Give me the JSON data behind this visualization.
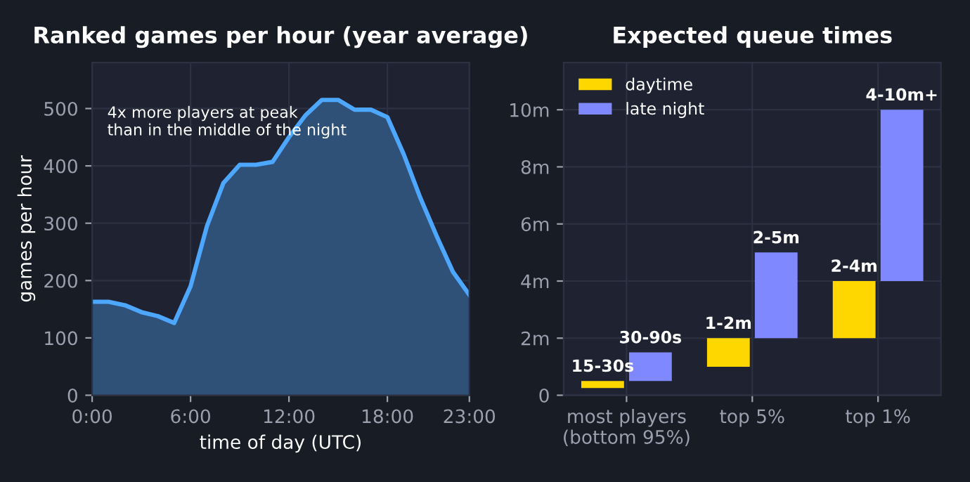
{
  "chart_data": [
    {
      "type": "area",
      "title": "Ranked games per hour (year average)",
      "xlabel": "time of day (UTC)",
      "ylabel": "games per hour",
      "x": [
        0,
        1,
        2,
        3,
        4,
        5,
        6,
        7,
        8,
        9,
        10,
        11,
        12,
        13,
        14,
        15,
        16,
        17,
        18,
        19,
        20,
        21,
        22,
        23
      ],
      "series": [
        {
          "color": "#4da6ff",
          "values": [
            163,
            163,
            157,
            145,
            138,
            126,
            190,
            295,
            370,
            402,
            402,
            407,
            450,
            488,
            515,
            515,
            498,
            498,
            485,
            420,
            345,
            278,
            215,
            175
          ]
        }
      ],
      "xlim": [
        0,
        23
      ],
      "xticks": [
        {
          "value": 0,
          "label": "0:00"
        },
        {
          "value": 6,
          "label": "6:00"
        },
        {
          "value": 12,
          "label": "12:00"
        },
        {
          "value": 18,
          "label": "18:00"
        },
        {
          "value": 23,
          "label": "23:00"
        }
      ],
      "ylim": [
        0,
        580
      ],
      "yticks": [
        0,
        100,
        200,
        300,
        400,
        500
      ],
      "grid": true,
      "annotations": [
        "4x more players at peak\nthan in the middle of the night"
      ]
    },
    {
      "type": "bar",
      "title": "Expected queue times",
      "categories": [
        "most players\n(bottom 95%)",
        "top 5%",
        "top 1%"
      ],
      "series": [
        {
          "name": "daytime",
          "color": "#ffd700",
          "base": [
            0.25,
            1,
            2
          ],
          "values": [
            0.25,
            1,
            2
          ],
          "value_labels": [
            "15-30s",
            "1-2m",
            "2-4m"
          ]
        },
        {
          "name": "late night",
          "color": "#7f88ff",
          "base": [
            0.5,
            2,
            4
          ],
          "values": [
            1,
            3,
            6
          ],
          "value_labels": [
            "30-90s",
            "2-5m",
            "4-10m+"
          ]
        }
      ],
      "ylim": [
        0,
        11.65
      ],
      "yticks": [
        0,
        {
          "value": 2,
          "label": "2m"
        },
        {
          "value": 4,
          "label": "4m"
        },
        {
          "value": 6,
          "label": "6m"
        },
        {
          "value": 8,
          "label": "8m"
        },
        {
          "value": 10,
          "label": "10m"
        }
      ],
      "grid": true,
      "legend": "top left"
    }
  ]
}
